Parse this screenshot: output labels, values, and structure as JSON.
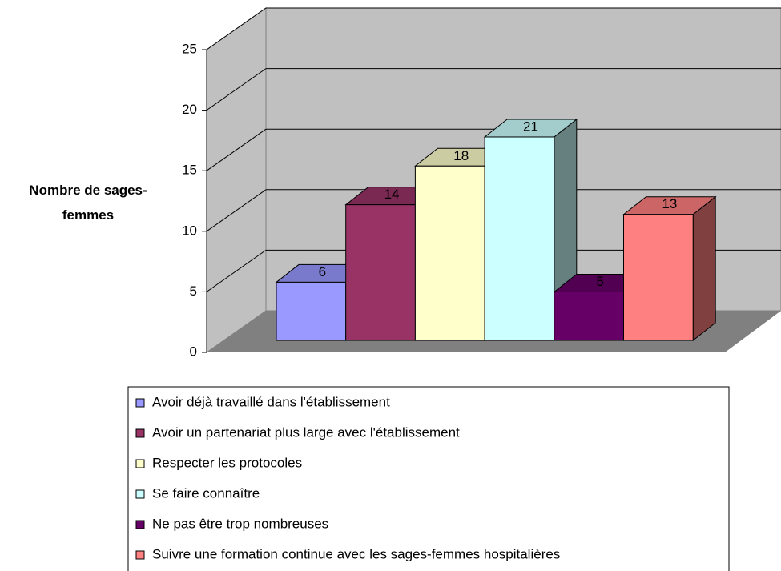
{
  "chart_data": {
    "type": "bar",
    "ylabel": "Nombre de sages-femmes",
    "ylim": [
      0,
      25
    ],
    "yticks": [
      0,
      5,
      10,
      15,
      20,
      25
    ],
    "grid": true,
    "legend": "bottom",
    "series": [
      {
        "name": "Avoir déjà travaillé dans l'établissement",
        "color": "#9999ff",
        "values": [
          6
        ]
      },
      {
        "name": "Avoir un partenariat plus large avec l'établissement",
        "color": "#993366",
        "values": [
          14
        ]
      },
      {
        "name": "Respecter les protocoles",
        "color": "#ffffcc",
        "values": [
          18
        ]
      },
      {
        "name": "Se faire connaître",
        "color": "#ccffff",
        "values": [
          21
        ]
      },
      {
        "name": "Ne pas être trop nombreuses",
        "color": "#660066",
        "values": [
          5
        ]
      },
      {
        "name": "Suivre une formation continue avec les sages-femmes hospitalières",
        "color": "#ff8080",
        "values": [
          13
        ]
      }
    ]
  }
}
